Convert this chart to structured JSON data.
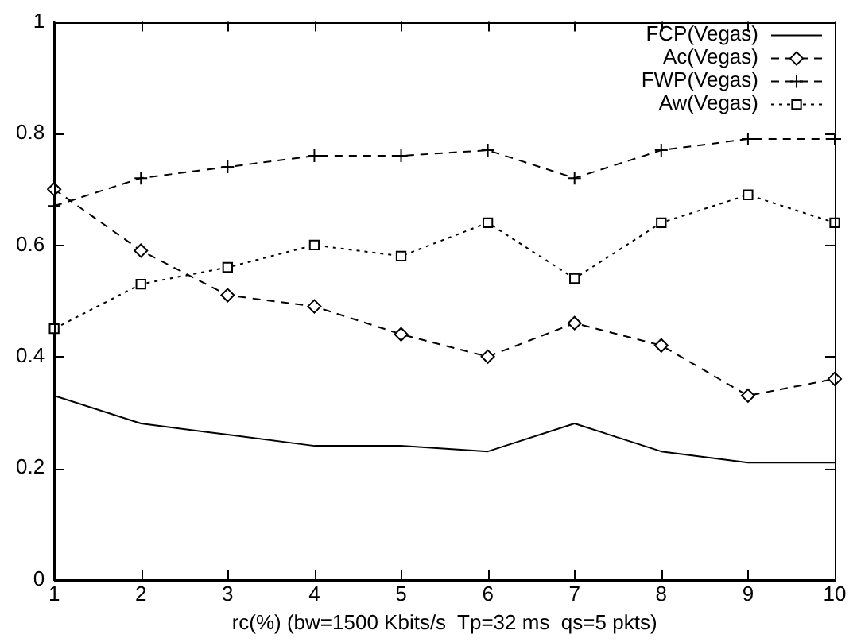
{
  "chart_data": {
    "type": "line",
    "xlabel": "rc(%) (bw=1500 Kbits/s  Tp=32 ms  qs=5 pkts)",
    "x": [
      1,
      2,
      3,
      4,
      5,
      6,
      7,
      8,
      9,
      10
    ],
    "xlim": [
      1,
      10
    ],
    "xticks": [
      1,
      2,
      3,
      4,
      5,
      6,
      7,
      8,
      9,
      10
    ],
    "ylim": [
      0,
      1
    ],
    "yticks": [
      0,
      0.2,
      0.4,
      0.6,
      0.8,
      1
    ],
    "grid": false,
    "legend": "top right",
    "series": [
      {
        "name": "FCP(Vegas)",
        "color": "#000000",
        "marker": "none",
        "line_style": "solid",
        "values": [
          0.33,
          0.28,
          0.26,
          0.24,
          0.24,
          0.23,
          0.28,
          0.23,
          0.21,
          0.21
        ]
      },
      {
        "name": "Ac(Vegas)",
        "color": "#000000",
        "marker": "diamond",
        "line_style": "dashed",
        "values": [
          0.7,
          0.59,
          0.51,
          0.49,
          0.44,
          0.4,
          0.46,
          0.42,
          0.33,
          0.36
        ]
      },
      {
        "name": "FWP(Vegas)",
        "color": "#000000",
        "marker": "cross",
        "line_style": "dashed",
        "values": [
          0.67,
          0.72,
          0.74,
          0.76,
          0.76,
          0.77,
          0.72,
          0.77,
          0.79,
          0.79
        ]
      },
      {
        "name": "Aw(Vegas)",
        "color": "#000000",
        "marker": "square",
        "line_style": "dotted",
        "values": [
          0.45,
          0.53,
          0.56,
          0.6,
          0.58,
          0.64,
          0.54,
          0.64,
          0.69,
          0.64
        ]
      }
    ]
  }
}
